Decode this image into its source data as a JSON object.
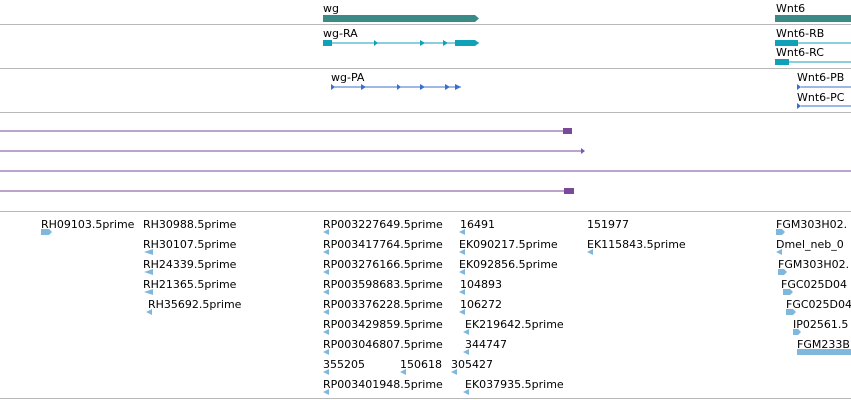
{
  "genes": {
    "wg": {
      "name": "wg",
      "transcripts": [
        "wg-RA"
      ],
      "proteins": [
        "wg-PA"
      ]
    },
    "wnt6": {
      "name": "Wnt6",
      "transcripts": [
        "Wnt6-RB",
        "Wnt6-RC"
      ],
      "proteins": [
        "Wnt6-PB",
        "Wnt6-PC"
      ]
    }
  },
  "est_clones": [
    "RH09103.5prime",
    "RH30988.5prime",
    "RH30107.5prime",
    "RH24339.5prime",
    "RH21365.5prime",
    "RH35692.5prime",
    "RP003227649.5prime",
    "RP003417764.5prime",
    "RP003276166.5prime",
    "RP003598683.5prime",
    "RP003376228.5prime",
    "RP003429859.5prime",
    "RP003046807.5prime",
    "355205",
    "150618",
    "RP003401948.5prime",
    "16491",
    "EK090217.5prime",
    "EK092856.5prime",
    "104893",
    "106272",
    "EK219642.5prime",
    "344747",
    "305427",
    "EK037935.5prime",
    "151977",
    "EK115843.5prime",
    "FGM303H02.",
    "Dmel_neb_0",
    "FGM303H02.",
    "FGC025D04",
    "FGC025D04",
    "IP02561.5",
    "FGM233B"
  ],
  "colors": {
    "gene_bar": "#3a8a88",
    "transcript": "#10a0b8",
    "protein": "#3a6fd0",
    "alignment": "#7a4a9a",
    "est_marker": "#7fb7dd",
    "separator": "#b8b8b8"
  }
}
